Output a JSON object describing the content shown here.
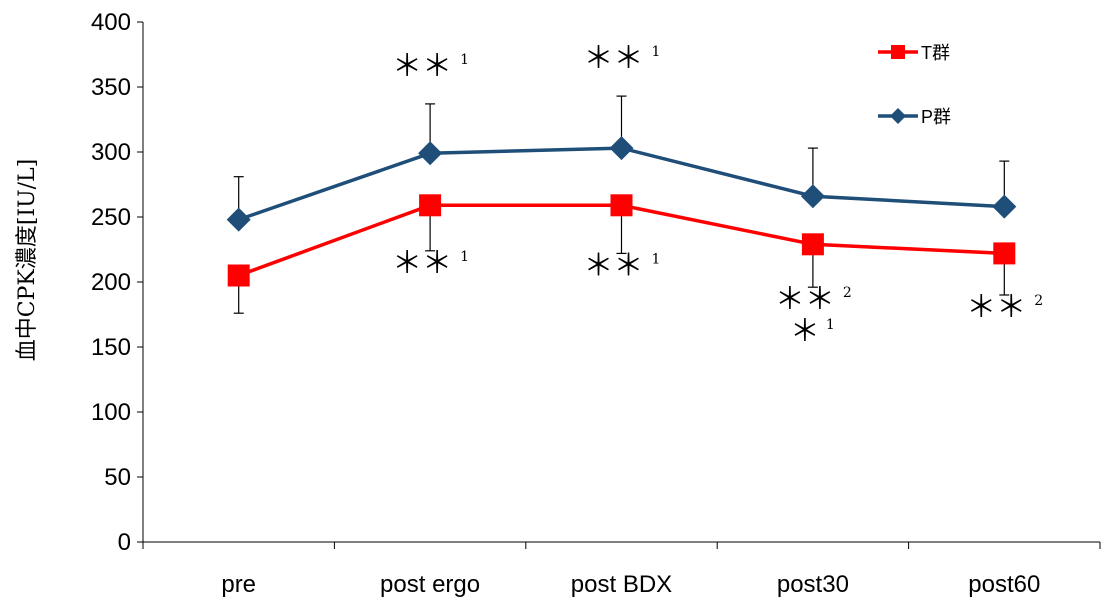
{
  "chart_data": {
    "type": "line",
    "title": "",
    "xlabel": "",
    "ylabel": "血中CPK濃度[IU/L]",
    "ylim": [
      0,
      400
    ],
    "yticks": [
      0,
      50,
      100,
      150,
      200,
      250,
      300,
      350,
      400
    ],
    "ytick_labels": [
      "0",
      "50",
      "100",
      "150",
      "200",
      "250",
      "300",
      "350",
      "400"
    ],
    "categories": [
      "pre",
      "post ergo",
      "post BDX",
      "post30",
      "post60"
    ],
    "grid": false,
    "legend_position": "top-right",
    "series": [
      {
        "name": "T群",
        "color": "#ff0000",
        "marker": "square",
        "values": [
          205,
          259,
          259,
          229,
          222
        ],
        "error": [
          29,
          35,
          37,
          33,
          32
        ]
      },
      {
        "name": "P群",
        "color": "#1f4e79",
        "marker": "diamond",
        "values": [
          248,
          299,
          303,
          266,
          258
        ],
        "error": [
          33,
          38,
          40,
          37,
          35
        ]
      }
    ],
    "annotations": [
      {
        "series": "P群",
        "category": "post ergo",
        "mark": "＊＊",
        "sup": "1"
      },
      {
        "series": "P群",
        "category": "post BDX",
        "mark": "＊＊",
        "sup": "1"
      },
      {
        "series": "T群",
        "category": "post ergo",
        "mark": "＊＊",
        "sup": "1"
      },
      {
        "series": "T群",
        "category": "post BDX",
        "mark": "＊＊",
        "sup": "1"
      },
      {
        "series": "T群",
        "category": "post30",
        "mark": "＊＊",
        "sup": "2"
      },
      {
        "series": "T群",
        "category": "post30",
        "mark": "＊",
        "sup": "1"
      },
      {
        "series": "T群",
        "category": "post60",
        "mark": "＊＊",
        "sup": "2"
      }
    ]
  }
}
